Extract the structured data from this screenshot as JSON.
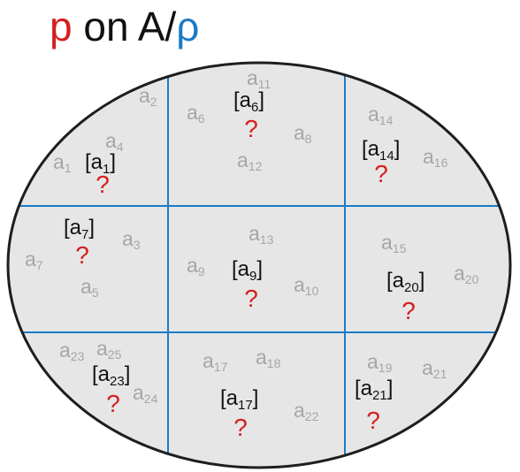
{
  "title": {
    "p": "p",
    "middle": " on A/",
    "rho": "ρ",
    "colors": {
      "p": "#d42020",
      "middle": "#111111",
      "rho": "#1a7cc8"
    }
  },
  "colors": {
    "ellipse_fill": "#e6e6e6",
    "ellipse_stroke": "#1e1e1e",
    "grid_line": "#1a7cc8",
    "element": "#a6a6a6",
    "class_label": "#111111",
    "question": "#d42020"
  },
  "question_mark": "?",
  "elements": [
    {
      "name": "a",
      "sub": "1"
    },
    {
      "name": "a",
      "sub": "2"
    },
    {
      "name": "a",
      "sub": "3"
    },
    {
      "name": "a",
      "sub": "4"
    },
    {
      "name": "a",
      "sub": "5"
    },
    {
      "name": "a",
      "sub": "6"
    },
    {
      "name": "a",
      "sub": "7"
    },
    {
      "name": "a",
      "sub": "8"
    },
    {
      "name": "a",
      "sub": "9"
    },
    {
      "name": "a",
      "sub": "10"
    },
    {
      "name": "a",
      "sub": "11"
    },
    {
      "name": "a",
      "sub": "12"
    },
    {
      "name": "a",
      "sub": "13"
    },
    {
      "name": "a",
      "sub": "14"
    },
    {
      "name": "a",
      "sub": "15"
    },
    {
      "name": "a",
      "sub": "16"
    },
    {
      "name": "a",
      "sub": "17"
    },
    {
      "name": "a",
      "sub": "18"
    },
    {
      "name": "a",
      "sub": "19"
    },
    {
      "name": "a",
      "sub": "20"
    },
    {
      "name": "a",
      "sub": "21"
    },
    {
      "name": "a",
      "sub": "22"
    },
    {
      "name": "a",
      "sub": "23"
    },
    {
      "name": "a",
      "sub": "24"
    },
    {
      "name": "a",
      "sub": "25"
    }
  ],
  "classes": [
    {
      "open": "[a",
      "sub": "1",
      "close": "]"
    },
    {
      "open": "[a",
      "sub": "6",
      "close": "]"
    },
    {
      "open": "[a",
      "sub": "14",
      "close": "]"
    },
    {
      "open": "[a",
      "sub": "7",
      "close": "]"
    },
    {
      "open": "[a",
      "sub": "9",
      "close": "]"
    },
    {
      "open": "[a",
      "sub": "20",
      "close": "]"
    },
    {
      "open": "[a",
      "sub": "23",
      "close": "]"
    },
    {
      "open": "[a",
      "sub": "17",
      "close": "]"
    },
    {
      "open": "[a",
      "sub": "21",
      "close": "]"
    }
  ]
}
